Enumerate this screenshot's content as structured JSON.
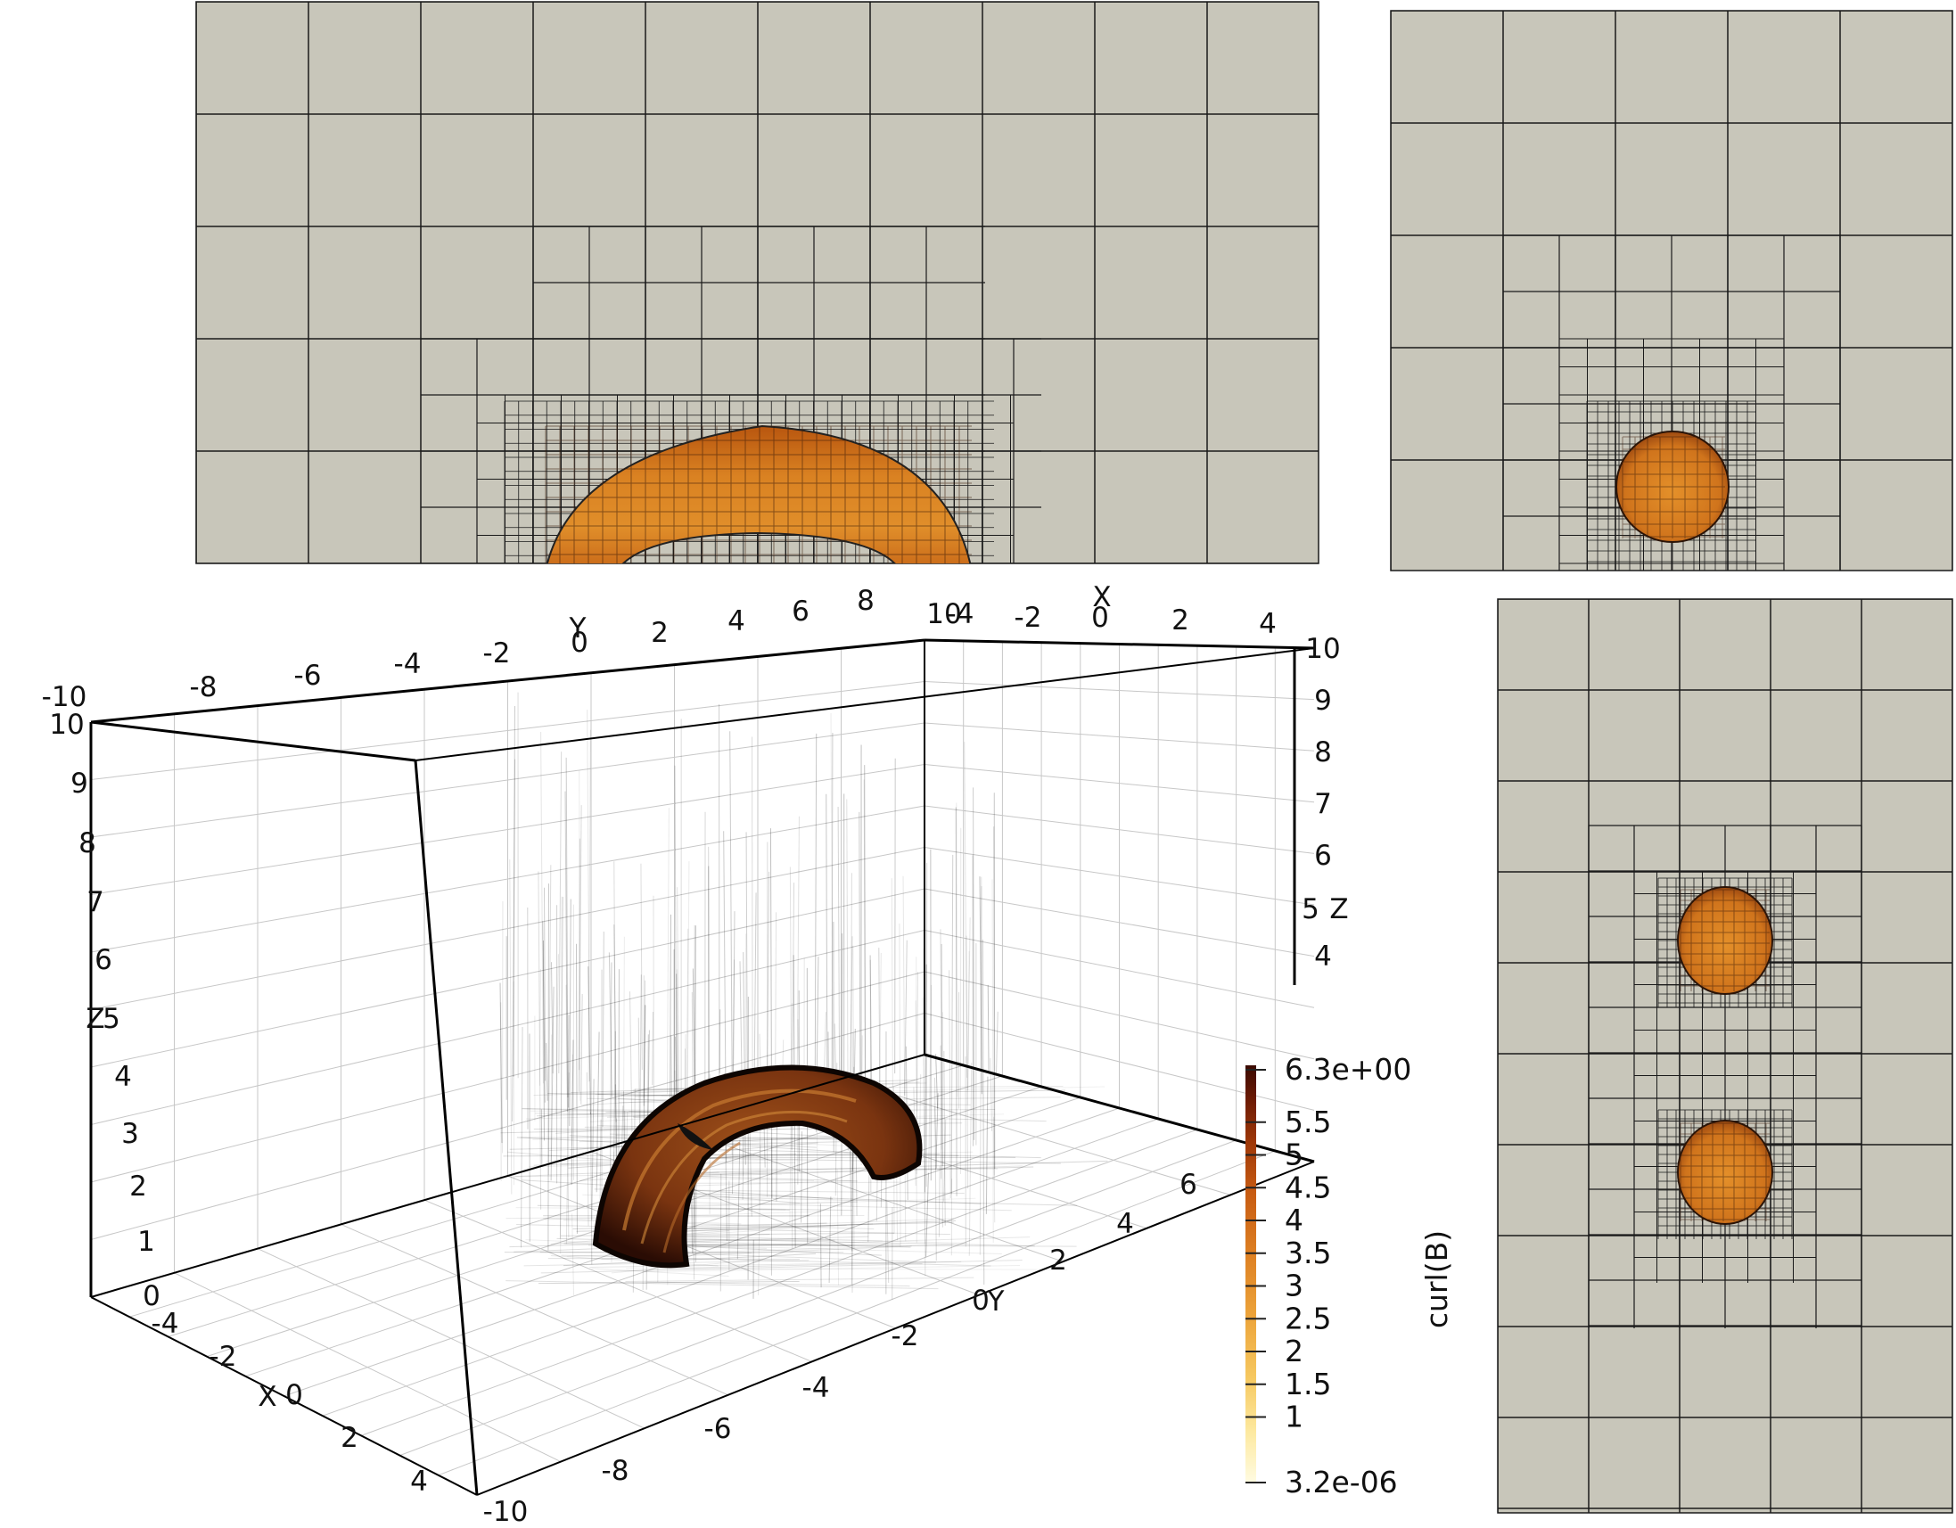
{
  "colors": {
    "panel_fill": "#c8c6ba",
    "mesh_line": "#1a1a1a",
    "torus_fill": "#d0781e",
    "box_edge": "#000000"
  },
  "panels": {
    "top_left": {
      "view": "slice",
      "feature": "torus-cross-section"
    },
    "top_right": {
      "view": "slice",
      "feature": "single-disc"
    },
    "right_bottom": {
      "view": "slice",
      "feature": "two-discs"
    }
  },
  "axes3d": {
    "y_top_title": "Y",
    "y_top_ticks": [
      "-10",
      "-8",
      "-6",
      "-4",
      "-2",
      "0",
      "2",
      "4",
      "6",
      "8",
      "10"
    ],
    "x_top_title": "X",
    "x_top_ticks": [
      "-4",
      "-2",
      "0",
      "2",
      "4"
    ],
    "z_right_title": "Z",
    "z_right_ticks": [
      "10",
      "9",
      "8",
      "7",
      "6",
      "5",
      "4"
    ],
    "z_left_title": "Z",
    "z_left_ticks": [
      "10",
      "9",
      "8",
      "7",
      "6",
      "5",
      "4",
      "3",
      "2",
      "1",
      "0"
    ],
    "x_bottom_title": "X",
    "x_bottom_ticks": [
      "-4",
      "-2",
      "0",
      "2",
      "4"
    ],
    "y_bottom_title": "Y",
    "y_bottom_ticks": [
      "-10",
      "-8",
      "-6",
      "-4",
      "-2",
      "0",
      "2",
      "4",
      "6"
    ]
  },
  "colorbar": {
    "title": "curl(B)",
    "max_label": "6.3e+00",
    "min_label": "3.2e-06",
    "ticks": [
      "5.5",
      "5",
      "4.5",
      "4",
      "3.5",
      "3",
      "2.5",
      "2",
      "1.5",
      "1"
    ],
    "gradient": [
      "#fffbe0",
      "#fde9a0",
      "#f6c860",
      "#eca33a",
      "#dd7f22",
      "#c65a12",
      "#9c3608",
      "#6b1a04",
      "#3a0a02"
    ]
  }
}
